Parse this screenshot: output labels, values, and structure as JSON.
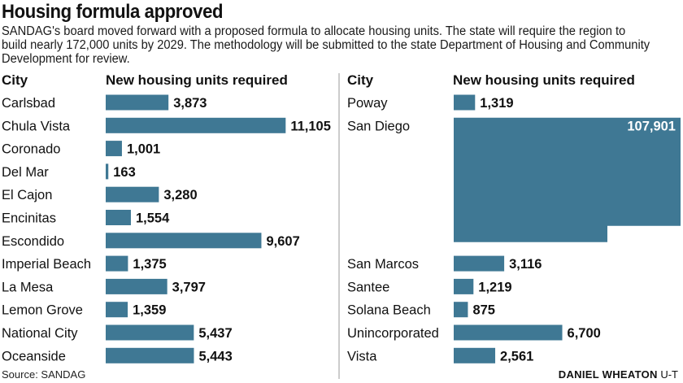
{
  "title": "Housing formula approved",
  "subtitle": "SANDAG's board moved forward with a proposed formula to allocate housing units. The state will require the region to build nearly 172,000 units by 2029.  The methodology will be submitted to the state Department of Housing and Community Development for review.",
  "headers": {
    "city": "City",
    "units": "New housing units required"
  },
  "source": "Source: SANDAG",
  "credit": {
    "name": "DANIEL WHEATON",
    "org": "U-T"
  },
  "colors": {
    "bar": "#3f7894"
  },
  "chart_data": [
    {
      "type": "bar",
      "orientation": "horizontal",
      "xlabel": "City",
      "ylabel": "New housing units required",
      "categories": [
        "Carlsbad",
        "Chula Vista",
        "Coronado",
        "Del Mar",
        "El Cajon",
        "Encinitas",
        "Escondido",
        "Imperial Beach",
        "La Mesa",
        "Lemon Grove",
        "National City",
        "Oceanside"
      ],
      "values": [
        3873,
        11105,
        1001,
        163,
        3280,
        1554,
        9607,
        1375,
        3797,
        1359,
        5437,
        5443
      ],
      "labels": [
        "3,873",
        "11,105",
        "1,001",
        "163",
        "3,280",
        "1,554",
        "9,607",
        "1,375",
        "3,797",
        "1,359",
        "5,437",
        "5,443"
      ]
    },
    {
      "type": "bar",
      "orientation": "horizontal",
      "xlabel": "City",
      "ylabel": "New housing units required",
      "categories": [
        "Poway",
        "San Diego",
        "San Marcos",
        "Santee",
        "Solana Beach",
        "Unincorporated",
        "Vista"
      ],
      "values": [
        1319,
        107901,
        3116,
        1219,
        875,
        6700,
        2561
      ],
      "labels": [
        "1,319",
        "107,901",
        "3,116",
        "1,219",
        "875",
        "6,700",
        "2,561"
      ],
      "note": "San Diego value exceeds row width and wraps as a block spanning multiple rows"
    }
  ]
}
